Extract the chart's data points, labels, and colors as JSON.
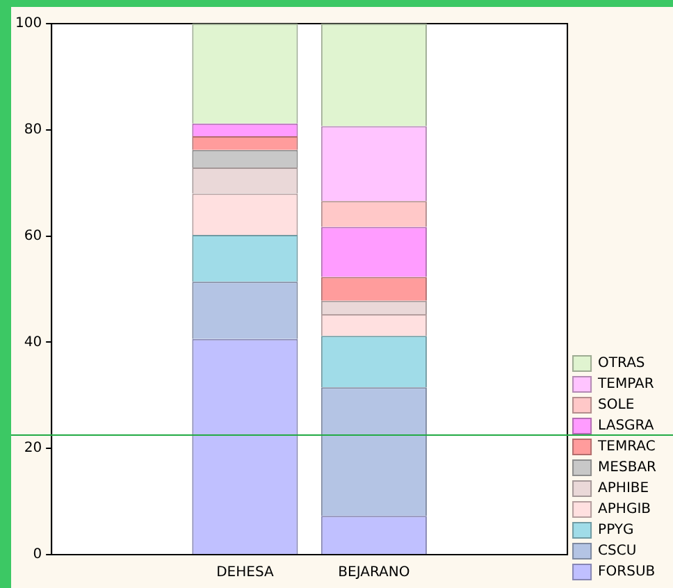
{
  "chart_data": {
    "type": "bar",
    "stacked": true,
    "categories": [
      null,
      "DEHESA",
      "BEJARANO",
      null
    ],
    "series": [
      {
        "name": "FORSUB",
        "color": "#c0c0ff",
        "values": [
          null,
          40.6,
          7.3,
          null
        ]
      },
      {
        "name": "CSCU",
        "color": "#b4c4e4",
        "values": [
          null,
          10.8,
          24.2,
          null
        ]
      },
      {
        "name": "PPYG",
        "color": "#a0dce8",
        "values": [
          null,
          8.8,
          9.7,
          null
        ]
      },
      {
        "name": "APHGIB",
        "color": "#ffe0e0",
        "values": [
          null,
          7.8,
          4.1,
          null
        ]
      },
      {
        "name": "APHIBE",
        "color": "#ead8d8",
        "values": [
          null,
          4.9,
          2.5,
          null
        ]
      },
      {
        "name": "MESBAR",
        "color": "#c8c8c8",
        "values": [
          null,
          3.3,
          0,
          null
        ]
      },
      {
        "name": "TEMRAC",
        "color": "#ff9c9c",
        "values": [
          null,
          2.6,
          4.5,
          null
        ]
      },
      {
        "name": "LASGRA",
        "color": "#ff9cff",
        "values": [
          null,
          2.4,
          9.4,
          null
        ]
      },
      {
        "name": "SOLE",
        "color": "#ffc8c8",
        "values": [
          null,
          0,
          4.9,
          null
        ]
      },
      {
        "name": "TEMPAR",
        "color": "#ffc4ff",
        "values": [
          null,
          0,
          14.1,
          null
        ]
      },
      {
        "name": "OTRAS",
        "color": "#e0f4d0",
        "values": [
          null,
          18.8,
          19.3,
          null
        ]
      }
    ],
    "ylim": [
      0,
      100
    ],
    "yticks": [
      0,
      20,
      40,
      60,
      80,
      100
    ],
    "grid": false,
    "legend": "bottom right",
    "ref_lines": [
      {
        "axis": "y",
        "value": 22.5,
        "color": "#22aa44"
      }
    ]
  }
}
